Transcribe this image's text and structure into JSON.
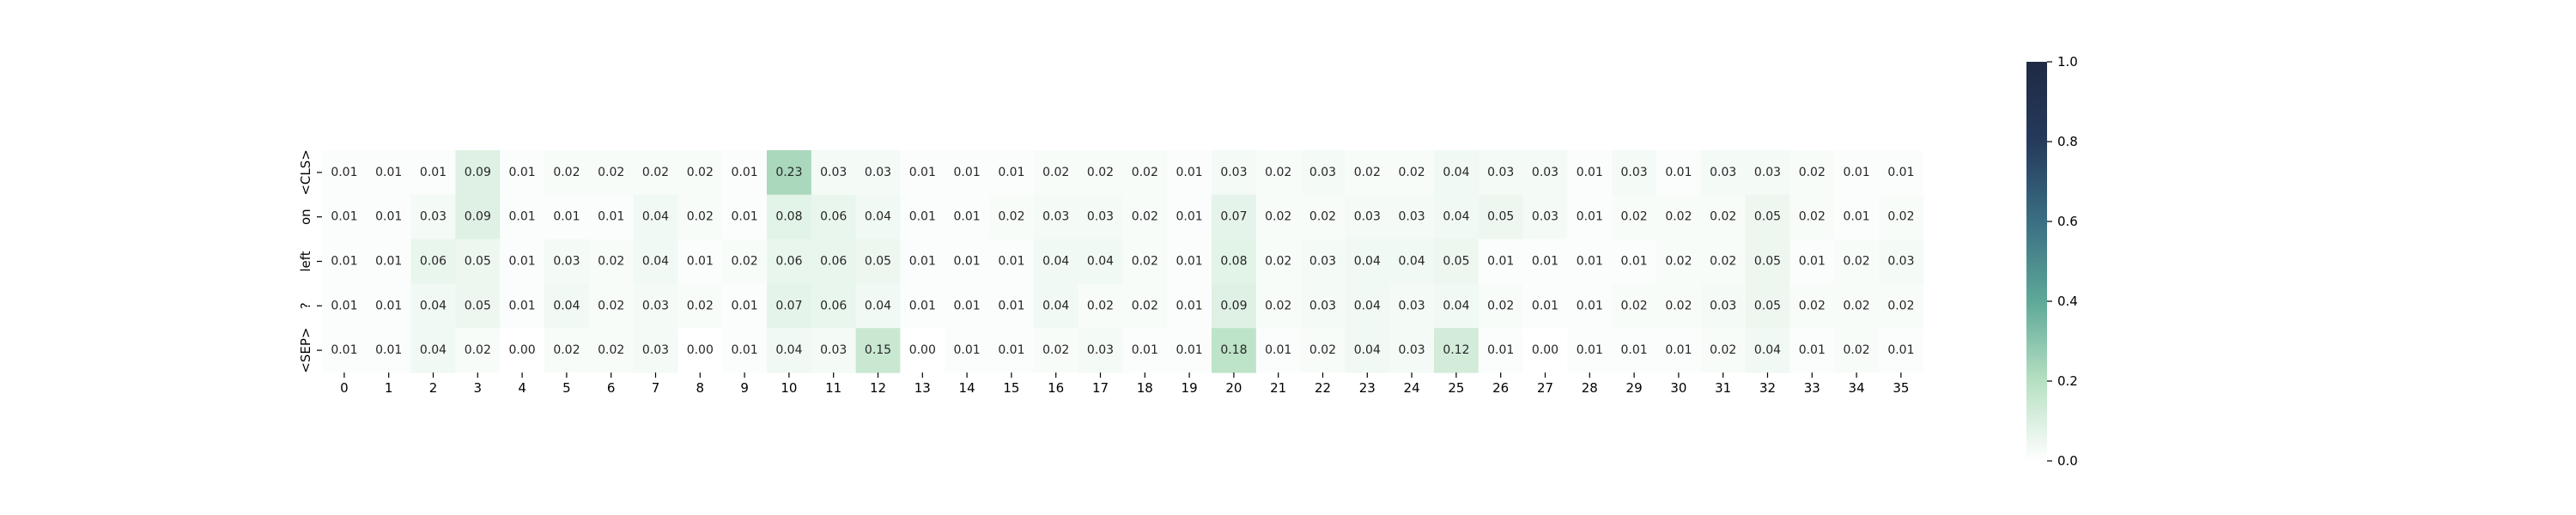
{
  "chart_data": {
    "type": "heatmap",
    "x_labels": [
      "0",
      "1",
      "2",
      "3",
      "4",
      "5",
      "6",
      "7",
      "8",
      "9",
      "10",
      "11",
      "12",
      "13",
      "14",
      "15",
      "16",
      "17",
      "18",
      "19",
      "20",
      "21",
      "22",
      "23",
      "24",
      "25",
      "26",
      "27",
      "28",
      "29",
      "30",
      "31",
      "32",
      "33",
      "34",
      "35"
    ],
    "y_labels": [
      "<CLS>",
      "on",
      "left",
      "?",
      "<SEP>"
    ],
    "values": [
      [
        0.01,
        0.01,
        0.01,
        0.09,
        0.01,
        0.02,
        0.02,
        0.02,
        0.02,
        0.01,
        0.23,
        0.03,
        0.03,
        0.01,
        0.01,
        0.01,
        0.02,
        0.02,
        0.02,
        0.01,
        0.03,
        0.02,
        0.03,
        0.02,
        0.02,
        0.04,
        0.03,
        0.03,
        0.01,
        0.03,
        0.01,
        0.03,
        0.03,
        0.02,
        0.01,
        0.01
      ],
      [
        0.01,
        0.01,
        0.03,
        0.09,
        0.01,
        0.01,
        0.01,
        0.04,
        0.02,
        0.01,
        0.08,
        0.06,
        0.04,
        0.01,
        0.01,
        0.02,
        0.03,
        0.03,
        0.02,
        0.01,
        0.07,
        0.02,
        0.02,
        0.03,
        0.03,
        0.04,
        0.05,
        0.03,
        0.01,
        0.02,
        0.02,
        0.02,
        0.05,
        0.02,
        0.01,
        0.02
      ],
      [
        0.01,
        0.01,
        0.06,
        0.05,
        0.01,
        0.03,
        0.02,
        0.04,
        0.01,
        0.02,
        0.06,
        0.06,
        0.05,
        0.01,
        0.01,
        0.01,
        0.04,
        0.04,
        0.02,
        0.01,
        0.08,
        0.02,
        0.03,
        0.04,
        0.04,
        0.05,
        0.01,
        0.01,
        0.01,
        0.01,
        0.02,
        0.02,
        0.05,
        0.01,
        0.02,
        0.03
      ],
      [
        0.01,
        0.01,
        0.04,
        0.05,
        0.01,
        0.04,
        0.02,
        0.03,
        0.02,
        0.01,
        0.07,
        0.06,
        0.04,
        0.01,
        0.01,
        0.01,
        0.04,
        0.02,
        0.02,
        0.01,
        0.09,
        0.02,
        0.03,
        0.04,
        0.03,
        0.04,
        0.02,
        0.01,
        0.01,
        0.02,
        0.02,
        0.03,
        0.05,
        0.02,
        0.02,
        0.02
      ],
      [
        0.01,
        0.01,
        0.04,
        0.02,
        0.0,
        0.02,
        0.02,
        0.03,
        0.0,
        0.01,
        0.04,
        0.03,
        0.15,
        0.0,
        0.01,
        0.01,
        0.02,
        0.03,
        0.01,
        0.01,
        0.18,
        0.01,
        0.02,
        0.04,
        0.03,
        0.12,
        0.01,
        0.0,
        0.01,
        0.01,
        0.01,
        0.02,
        0.04,
        0.01,
        0.02,
        0.01
      ]
    ],
    "value_format": "0.00",
    "vmin": 0.0,
    "vmax": 1.0,
    "colorbar_ticks": [
      "0.0",
      "0.2",
      "0.4",
      "0.6",
      "0.8",
      "1.0"
    ],
    "colormap": [
      "#ffffff",
      "#b6e0c2",
      "#5ea898",
      "#3a6f83",
      "#253a5c",
      "#1f2a44"
    ]
  }
}
